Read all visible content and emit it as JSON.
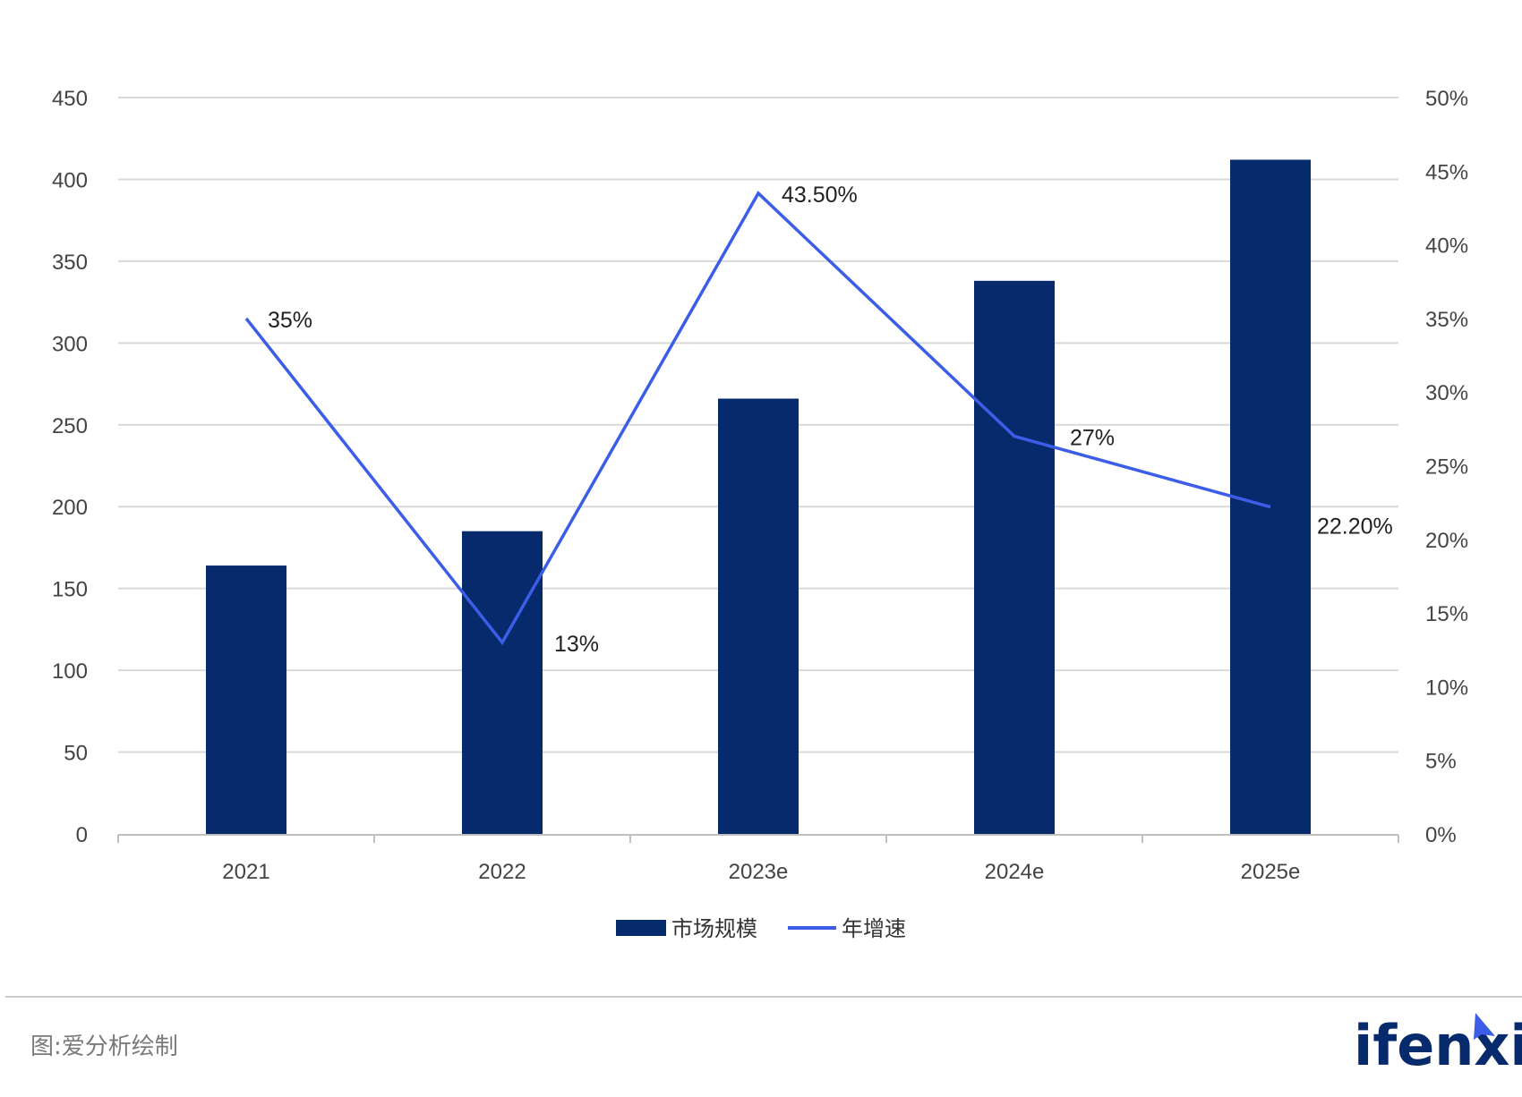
{
  "chart_data": {
    "type": "bar",
    "categories": [
      "2021",
      "2022",
      "2023e",
      "2024e",
      "2025e"
    ],
    "series": [
      {
        "name": "市场规模",
        "type": "bar",
        "axis": "left",
        "values": [
          164,
          185,
          266,
          338,
          412
        ],
        "color": "#062a6b"
      },
      {
        "name": "年增速",
        "type": "line",
        "axis": "right",
        "values": [
          35,
          13,
          43.5,
          27,
          22.2
        ],
        "data_labels": [
          "35%",
          "13%",
          "43.50%",
          "27%",
          "22.20%"
        ],
        "color": "#3b5de7"
      }
    ],
    "y_left": {
      "min": 0,
      "max": 450,
      "step": 50,
      "ticks": [
        "0",
        "50",
        "100",
        "150",
        "200",
        "250",
        "300",
        "350",
        "400",
        "450"
      ]
    },
    "y_right": {
      "min": 0,
      "max": 50,
      "step": 5,
      "ticks": [
        "0%",
        "5%",
        "10%",
        "15%",
        "20%",
        "25%",
        "30%",
        "35%",
        "40%",
        "45%",
        "50%"
      ]
    },
    "grid": true,
    "legend": "bottom-center"
  },
  "footer": {
    "source": "图:爱分析绘制",
    "logo": "ifenxi"
  },
  "colors": {
    "bar": "#062a6b",
    "line": "#3b5de7",
    "grid": "#d9d9d9",
    "axis": "#bfbfbf"
  }
}
